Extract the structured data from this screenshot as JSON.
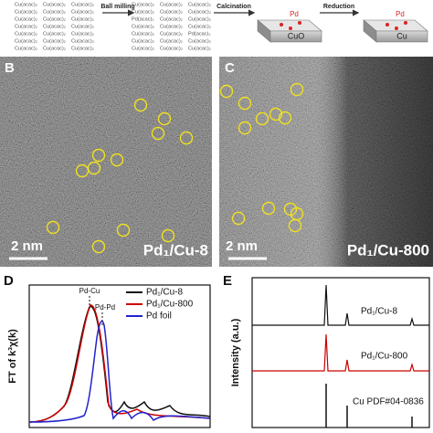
{
  "panel_a": {
    "precursor_rows": [
      [
        "Cu(acac)₂",
        "Cu(acac)₂",
        "Cu(acac)₂"
      ],
      [
        "Cu(acac)₂",
        "Cu(acac)₂",
        "Cu(acac)₂"
      ],
      [
        "Cu(acac)₂",
        "Cu(acac)₂",
        "Cu(acac)₂"
      ],
      [
        "Cu(acac)₂",
        "Cu(acac)₂",
        "Cu(acac)₂"
      ],
      [
        "Cu(acac)₂",
        "Cu(acac)₂",
        "Cu(acac)₂"
      ],
      [
        "Cu(acac)₂",
        "Cu(acac)₂",
        "Cu(acac)₂"
      ],
      [
        "Cu(acac)₂",
        "Cu(acac)₂",
        "Cu(acac)₂"
      ]
    ],
    "mixed_rows": [
      [
        "Cu(acac)₂",
        "Cu(acac)₂",
        "Cu(acac)₂"
      ],
      [
        "Cu(acac)₂",
        "Cu(acac)₂",
        "Cu(acac)₂"
      ],
      [
        "Pd(acac)₂",
        "Cu(acac)₂",
        "Cu(acac)₂"
      ],
      [
        "Cu(acac)₂",
        "Cu(acac)₂",
        "Cu(acac)₂"
      ],
      [
        "Cu(acac)₂",
        "Cu(acac)₂",
        "Pd(acac)₂"
      ],
      [
        "Cu(acac)₂",
        "Cu(acac)₂",
        "Cu(acac)₂"
      ],
      [
        "Cu(acac)₂",
        "Cu(acac)₂",
        "Cu(acac)₂"
      ]
    ],
    "steps": [
      "Ball milling",
      "Calcination",
      "Reduction"
    ],
    "boxes": [
      {
        "dopant": "Pd",
        "support": "CuO"
      },
      {
        "dopant": "Pd",
        "support": "Cu"
      }
    ]
  },
  "panel_b": {
    "label": "B",
    "scale_bar": "2 nm",
    "sample": "Pd₁/Cu-8"
  },
  "panel_c": {
    "label": "C",
    "scale_bar": "2 nm",
    "sample": "Pd₁/Cu-800"
  },
  "panel_d": {
    "label": "D",
    "y_label": "FT of k³χ(k)",
    "legend": [
      "Pd₁/Cu-8",
      "Pd₁/Cu-800",
      "Pd foil"
    ],
    "annotations": [
      "Pd-Cu",
      "Pd-Pd"
    ]
  },
  "panel_e": {
    "label": "E",
    "y_label": "Intensity (a.u.)",
    "traces": [
      "Pd₁/Cu-8",
      "Pd₁/Cu-800",
      "Cu PDF#04-0836"
    ]
  }
}
